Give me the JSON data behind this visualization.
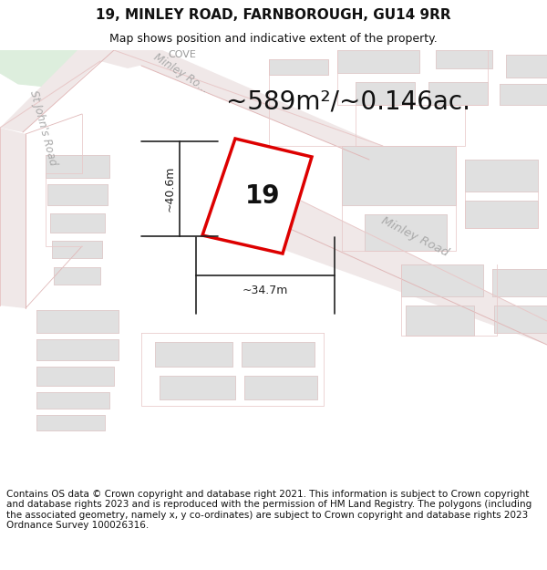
{
  "title": "19, MINLEY ROAD, FARNBOROUGH, GU14 9RR",
  "subtitle": "Map shows position and indicative extent of the property.",
  "area_text": "~589m²/~0.146ac.",
  "number_label": "19",
  "dim_width": "~34.7m",
  "dim_height": "~40.6m",
  "footer_text": "Contains OS data © Crown copyright and database right 2021. This information is subject to Crown copyright and database rights 2023 and is reproduced with the permission of HM Land Registry. The polygons (including the associated geometry, namely x, y co-ordinates) are subject to Crown copyright and database rights 2023 Ordnance Survey 100026316.",
  "bg_white": "#ffffff",
  "map_bg": "#f8f6f3",
  "road_fill": "#f0e8e8",
  "road_outline": "#e8c8c8",
  "road_outline_thin": "#e0b8b8",
  "building_fill": "#e0e0e0",
  "building_edge": "#cccccc",
  "green_fill": "#ddeedd",
  "plot_red": "#dd0000",
  "dim_color": "#222222",
  "label_road": "#aaaaaa",
  "label_cove": "#999999",
  "title_fs": 11,
  "subtitle_fs": 9,
  "area_fs": 20,
  "num_fs": 20,
  "road_fs": 9,
  "dim_fs": 9,
  "footer_fs": 7.5,
  "road_lw": 0.7,
  "plot_lw": 2.5
}
